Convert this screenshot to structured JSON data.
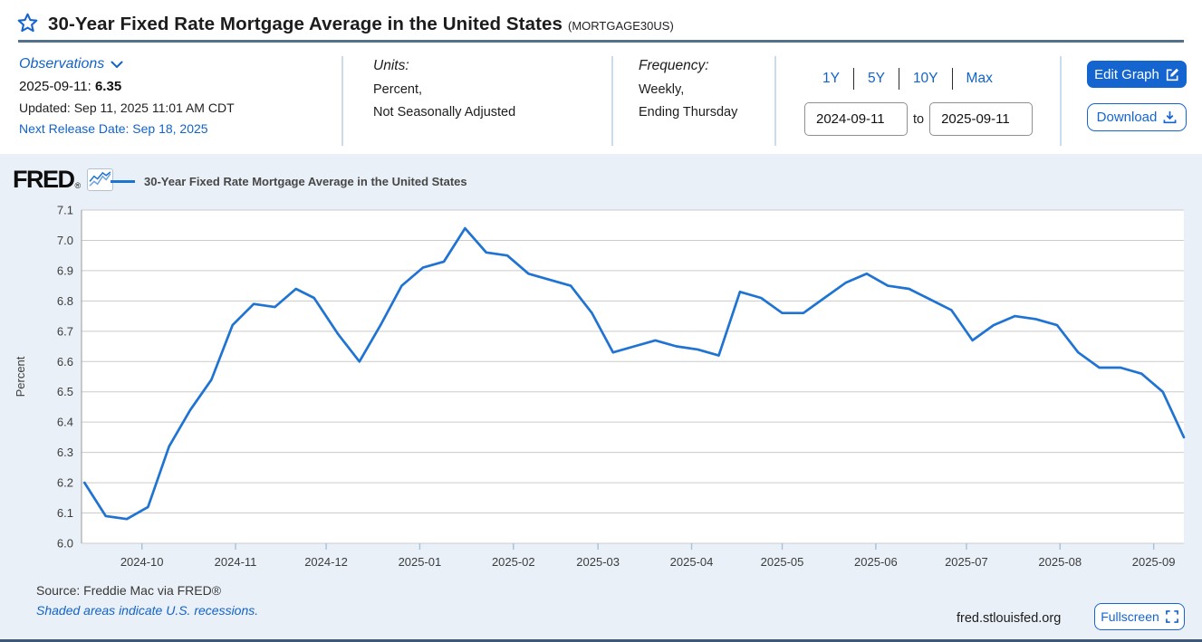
{
  "header": {
    "title": "30-Year Fixed Rate Mortgage Average in the United States",
    "series_id_label": "(MORTGAGE30US)"
  },
  "observations": {
    "label": "Observations",
    "latest_date_label": "2025-09-11:",
    "latest_value": "6.35",
    "updated": "Updated: Sep 11, 2025 11:01 AM CDT",
    "next_release": "Next Release Date: Sep 18, 2025"
  },
  "units": {
    "label": "Units:",
    "line1": "Percent,",
    "line2": "Not Seasonally Adjusted"
  },
  "frequency": {
    "label": "Frequency:",
    "line1": "Weekly,",
    "line2": "Ending Thursday"
  },
  "controls": {
    "ranges": [
      "1Y",
      "5Y",
      "10Y",
      "Max"
    ],
    "date_from": "2024-09-11",
    "to_label": "to",
    "date_to": "2025-09-11",
    "edit_graph_label": "Edit Graph",
    "download_label": "Download"
  },
  "branding": {
    "logo_text": "FRED",
    "registered_mark": "®"
  },
  "legend": {
    "label": "30-Year Fixed Rate Mortgage Average in the United States"
  },
  "footer": {
    "source": "Source: Freddie Mac via FRED®",
    "recession_note": "Shaded areas indicate U.S. recessions.",
    "site": "fred.stlouisfed.org",
    "fullscreen_label": "Fullscreen"
  },
  "colors": {
    "accent_blue": "#1263c9",
    "button_blue": "#1565d0",
    "line_blue": "#1f73d2",
    "rule_slate": "#54718c",
    "panel_bg": "#e9f0f8",
    "grid": "#cccccc",
    "axis": "#999999",
    "month_tick": "#a9c0d6"
  },
  "chart_data": {
    "type": "line",
    "title": "30-Year Fixed Rate Mortgage Average in the United States",
    "ylabel": "Percent",
    "xlabel": "",
    "ylim": [
      6.0,
      7.1
    ],
    "xlim": [
      "2024-09-11",
      "2025-09-11"
    ],
    "grid": true,
    "legend_position": "top-left",
    "y_ticks": [
      6.0,
      6.1,
      6.2,
      6.3,
      6.4,
      6.5,
      6.6,
      6.7,
      6.8,
      6.9,
      7.0,
      7.1
    ],
    "x_ticks": [
      {
        "label": "2024-10",
        "date": "2024-10-01"
      },
      {
        "label": "2024-11",
        "date": "2024-11-01"
      },
      {
        "label": "2024-12",
        "date": "2024-12-01"
      },
      {
        "label": "2025-01",
        "date": "2025-01-01"
      },
      {
        "label": "2025-02",
        "date": "2025-02-01"
      },
      {
        "label": "2025-03",
        "date": "2025-03-01"
      },
      {
        "label": "2025-04",
        "date": "2025-04-01"
      },
      {
        "label": "2025-05",
        "date": "2025-05-01"
      },
      {
        "label": "2025-06",
        "date": "2025-06-01"
      },
      {
        "label": "2025-07",
        "date": "2025-07-01"
      },
      {
        "label": "2025-08",
        "date": "2025-08-01"
      },
      {
        "label": "2025-09",
        "date": "2025-09-01"
      }
    ],
    "series": [
      {
        "name": "30-Year Fixed Rate Mortgage Average in the United States",
        "color": "#1f73d2",
        "points": [
          [
            "2024-09-12",
            6.2
          ],
          [
            "2024-09-19",
            6.09
          ],
          [
            "2024-09-26",
            6.08
          ],
          [
            "2024-10-03",
            6.12
          ],
          [
            "2024-10-10",
            6.32
          ],
          [
            "2024-10-17",
            6.44
          ],
          [
            "2024-10-24",
            6.54
          ],
          [
            "2024-10-31",
            6.72
          ],
          [
            "2024-11-07",
            6.79
          ],
          [
            "2024-11-14",
            6.78
          ],
          [
            "2024-11-21",
            6.84
          ],
          [
            "2024-11-27",
            6.81
          ],
          [
            "2024-12-05",
            6.69
          ],
          [
            "2024-12-12",
            6.6
          ],
          [
            "2024-12-19",
            6.72
          ],
          [
            "2024-12-26",
            6.85
          ],
          [
            "2025-01-02",
            6.91
          ],
          [
            "2025-01-09",
            6.93
          ],
          [
            "2025-01-16",
            7.04
          ],
          [
            "2025-01-23",
            6.96
          ],
          [
            "2025-01-30",
            6.95
          ],
          [
            "2025-02-06",
            6.89
          ],
          [
            "2025-02-13",
            6.87
          ],
          [
            "2025-02-20",
            6.85
          ],
          [
            "2025-02-27",
            6.76
          ],
          [
            "2025-03-06",
            6.63
          ],
          [
            "2025-03-13",
            6.65
          ],
          [
            "2025-03-20",
            6.67
          ],
          [
            "2025-03-27",
            6.65
          ],
          [
            "2025-04-03",
            6.64
          ],
          [
            "2025-04-10",
            6.62
          ],
          [
            "2025-04-17",
            6.83
          ],
          [
            "2025-04-24",
            6.81
          ],
          [
            "2025-05-01",
            6.76
          ],
          [
            "2025-05-08",
            6.76
          ],
          [
            "2025-05-15",
            6.81
          ],
          [
            "2025-05-22",
            6.86
          ],
          [
            "2025-05-29",
            6.89
          ],
          [
            "2025-06-05",
            6.85
          ],
          [
            "2025-06-12",
            6.84
          ],
          [
            "2025-06-18",
            6.81
          ],
          [
            "2025-06-26",
            6.77
          ],
          [
            "2025-07-03",
            6.67
          ],
          [
            "2025-07-10",
            6.72
          ],
          [
            "2025-07-17",
            6.75
          ],
          [
            "2025-07-24",
            6.74
          ],
          [
            "2025-07-31",
            6.72
          ],
          [
            "2025-08-07",
            6.63
          ],
          [
            "2025-08-14",
            6.58
          ],
          [
            "2025-08-21",
            6.58
          ],
          [
            "2025-08-28",
            6.56
          ],
          [
            "2025-09-04",
            6.5
          ],
          [
            "2025-09-11",
            6.35
          ]
        ]
      }
    ]
  }
}
